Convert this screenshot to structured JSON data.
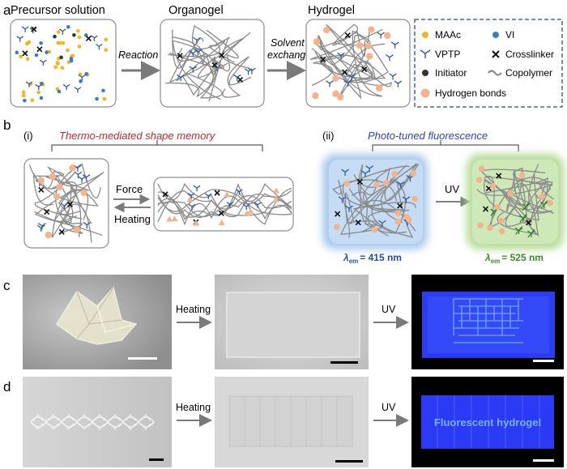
{
  "panel_a": {
    "letter": "a",
    "stage1_title": "Precursor solution",
    "stage2_title": "Organogel",
    "stage3_title": "Hydrogel",
    "arrow1_label": "Reaction",
    "arrow2_label_line1": "Solvent",
    "arrow2_label_line2": "exchange",
    "legend": {
      "maac": "MAAc",
      "vi": "VI",
      "vptp": "VPTP",
      "crosslinker": "Crosslinker",
      "initiator": "Initiator",
      "copolymer": "Copolymer",
      "hbonds": "Hydrogen bonds"
    },
    "colors": {
      "maac": "#f2b520",
      "vi": "#3b7dc3",
      "hbond": "#f2b38e",
      "vptp": "#2e5aa0"
    }
  },
  "panel_b": {
    "letter": "b",
    "sub_i": "(i)",
    "sub_ii": "(ii)",
    "title_i": "Thermo-mediated shape memory",
    "title_ii": "Photo-tuned fluorescence",
    "force_label": "Force",
    "heating_label": "Heating",
    "uv_label": "UV",
    "lambda_left_value": "= 415 nm",
    "lambda_right_value": "= 525 nm",
    "lambda_symbol": "λ",
    "lambda_sub": "em",
    "colors": {
      "title_i": "#c0272d",
      "title_ii": "#2b3fc6",
      "blue_gel": "#a9c8ec",
      "green_gel": "#b7dc9a",
      "lambda_left": "#2b4ea0",
      "lambda_right": "#3d8b2b"
    }
  },
  "panel_c": {
    "letter": "c",
    "arrow1_label": "Heating",
    "arrow2_label": "UV"
  },
  "panel_d": {
    "letter": "d",
    "arrow1_label": "Heating",
    "arrow2_label": "UV",
    "fluorescent_text": "Fluorescent hydrogel"
  }
}
